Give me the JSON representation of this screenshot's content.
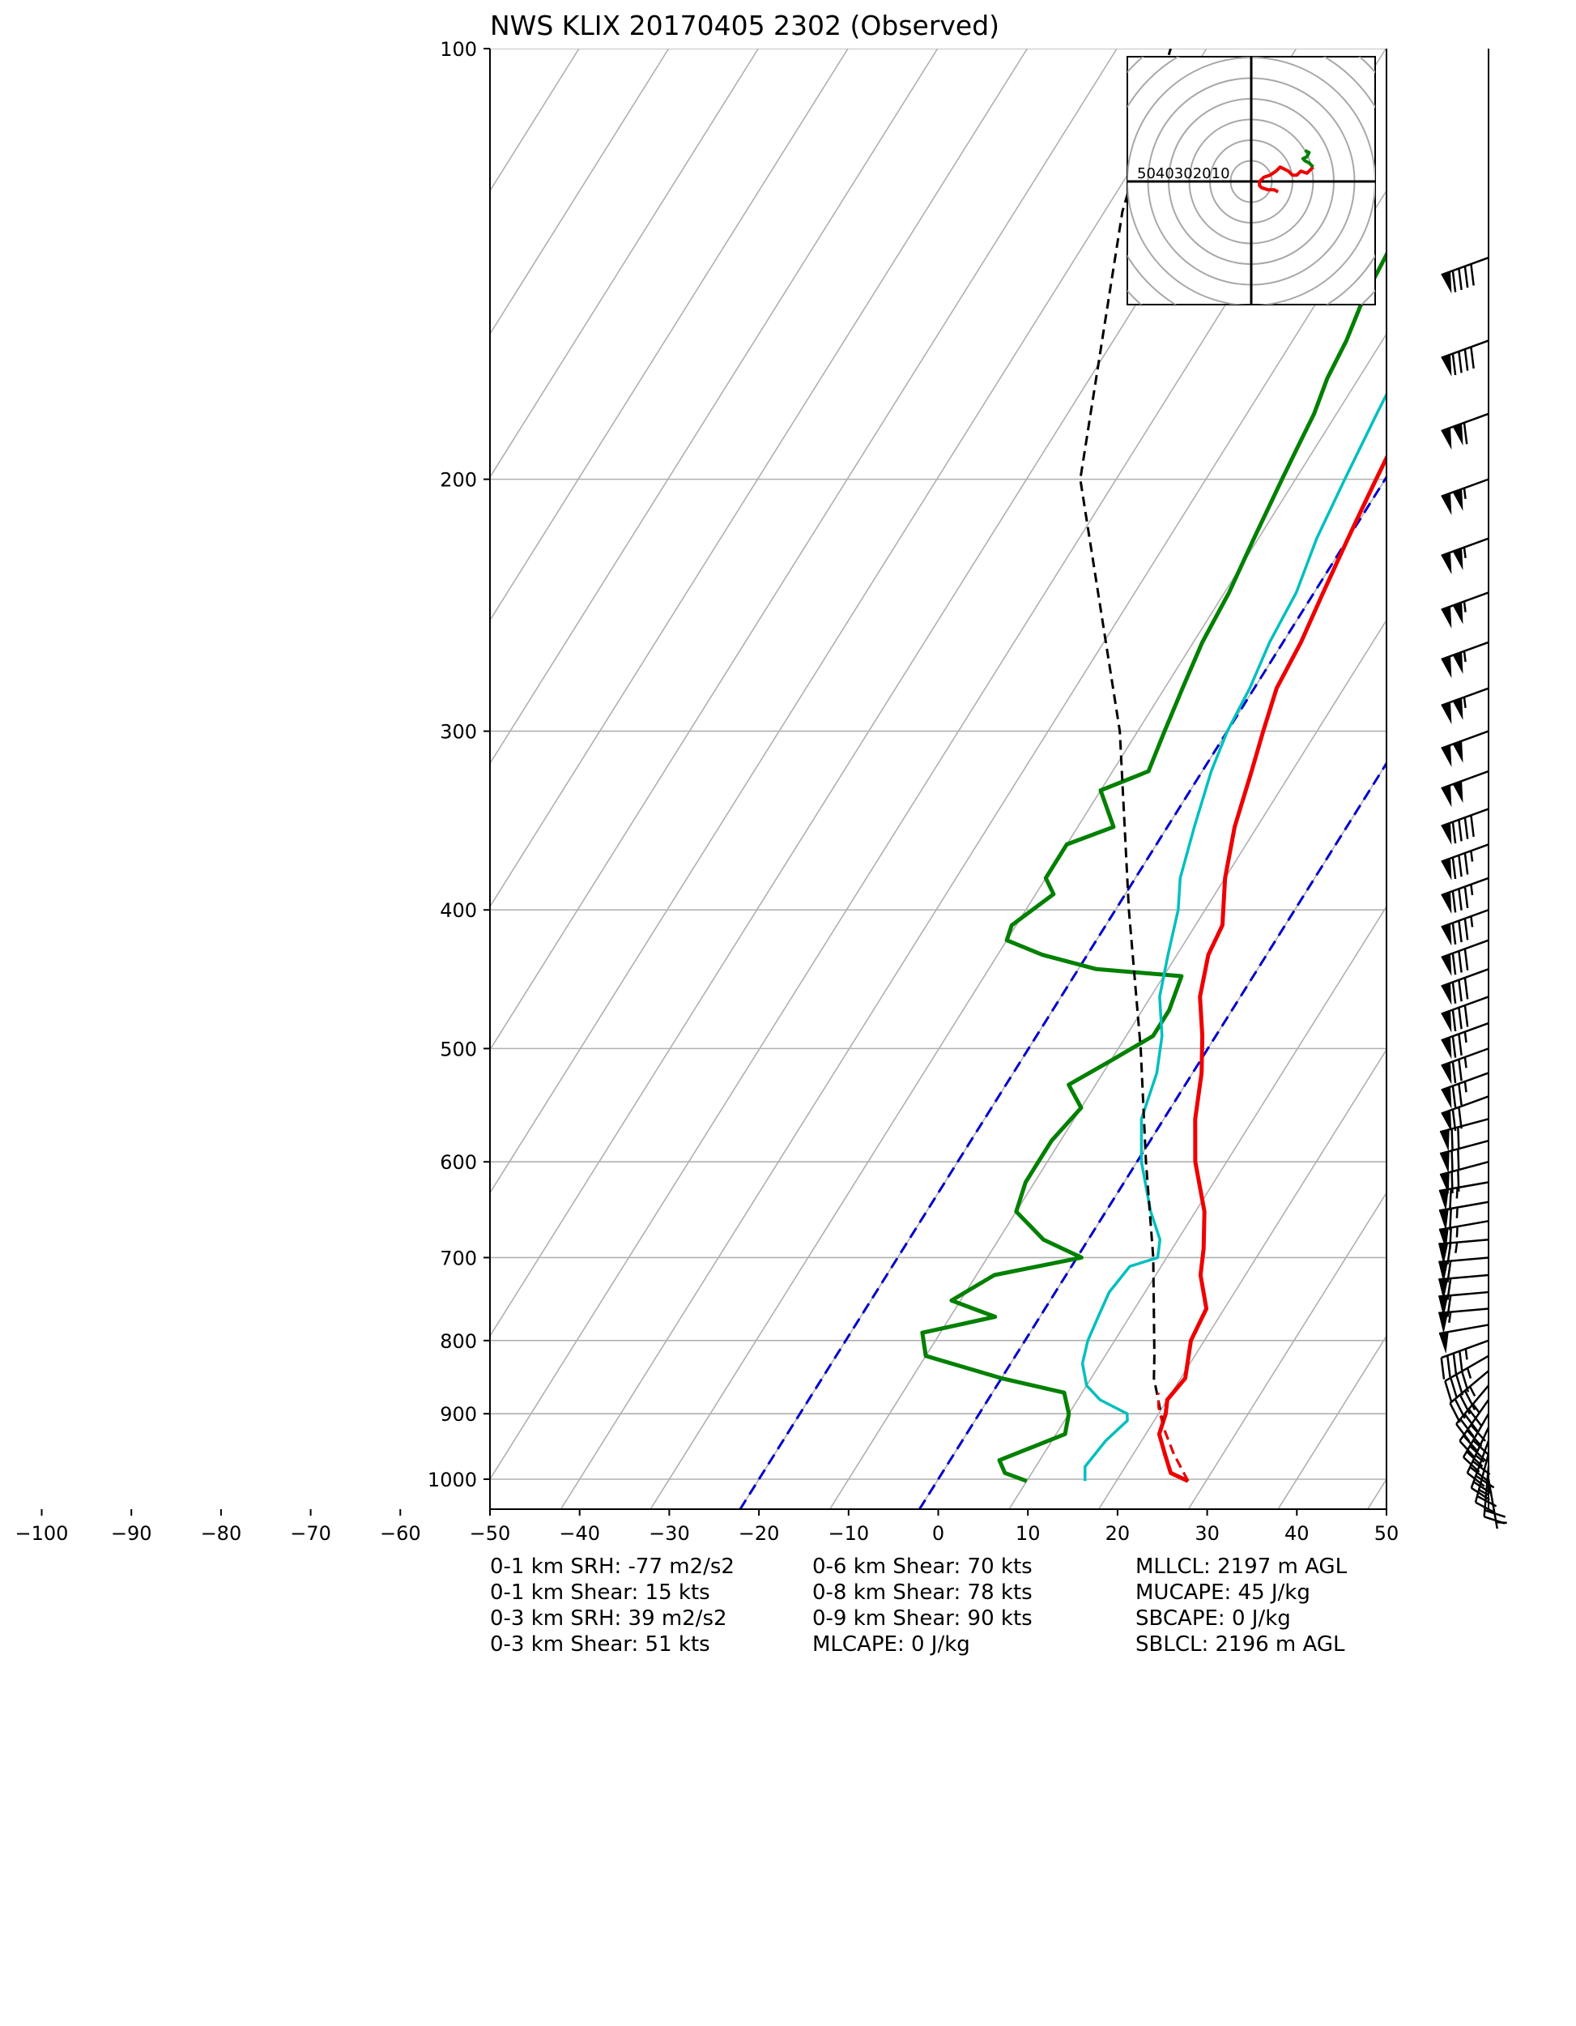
{
  "title": "NWS KLIX 20170405 2302   (Observed)",
  "chart_data": {
    "type": "skew-t",
    "title": "NWS KLIX 20170405 2302   (Observed)",
    "xlabel": "",
    "ylabel": "",
    "x_ticks": [
      -100,
      -90,
      -80,
      -70,
      -60,
      -50,
      -40,
      -30,
      -20,
      -10,
      0,
      10,
      20,
      30,
      40,
      50
    ],
    "x_ticks_labels": [
      "−100",
      "−90",
      "−80",
      "−70",
      "−60",
      "−50",
      "−40",
      "−30",
      "−20",
      "−10",
      "0",
      "10",
      "20",
      "30",
      "40",
      "50"
    ],
    "xlim": [
      -50,
      50
    ],
    "ylim": [
      1050,
      100
    ],
    "y_ticks": [
      100,
      200,
      300,
      400,
      500,
      600,
      700,
      800,
      900,
      1000
    ],
    "y_scale": "log",
    "grid": true,
    "series": [
      {
        "kind": "temperature",
        "color": "#ee0000",
        "points": [
          [
            1003,
            28
          ],
          [
            990,
            25.5
          ],
          [
            960,
            23.5
          ],
          [
            930,
            21.5
          ],
          [
            900,
            20.8
          ],
          [
            880,
            20
          ],
          [
            850,
            20.5
          ],
          [
            800,
            18.5
          ],
          [
            760,
            18
          ],
          [
            720,
            15
          ],
          [
            690,
            13.5
          ],
          [
            650,
            11
          ],
          [
            600,
            6.5
          ],
          [
            560,
            3.5
          ],
          [
            520,
            1
          ],
          [
            490,
            -1.5
          ],
          [
            460,
            -4.5
          ],
          [
            430,
            -6.5
          ],
          [
            410,
            -7
          ],
          [
            380,
            -10
          ],
          [
            350,
            -12.5
          ],
          [
            320,
            -14.5
          ],
          [
            300,
            -16
          ],
          [
            280,
            -17.5
          ],
          [
            260,
            -18
          ],
          [
            240,
            -19
          ],
          [
            220,
            -20
          ],
          [
            210,
            -20.5
          ],
          [
            200,
            -21
          ],
          [
            190,
            -21.5
          ],
          [
            180,
            -22.5
          ],
          [
            160,
            -24
          ],
          [
            140,
            -26
          ],
          [
            130,
            -27
          ],
          [
            120,
            -28
          ],
          [
            110,
            -28.5
          ],
          [
            100,
            -29
          ]
        ]
      },
      {
        "kind": "dewpoint",
        "color": "#008000",
        "points": [
          [
            1003,
            10
          ],
          [
            990,
            7
          ],
          [
            970,
            5.5
          ],
          [
            930,
            11
          ],
          [
            900,
            10
          ],
          [
            870,
            8
          ],
          [
            850,
            0
          ],
          [
            820,
            -10
          ],
          [
            790,
            -12
          ],
          [
            770,
            -5
          ],
          [
            750,
            -11
          ],
          [
            720,
            -8
          ],
          [
            700,
            0.5
          ],
          [
            680,
            -5
          ],
          [
            650,
            -10
          ],
          [
            620,
            -11
          ],
          [
            600,
            -11
          ],
          [
            580,
            -11
          ],
          [
            550,
            -10
          ],
          [
            530,
            -13
          ],
          [
            510,
            -10
          ],
          [
            490,
            -7
          ],
          [
            470,
            -7
          ],
          [
            445,
            -8
          ],
          [
            440,
            -18
          ],
          [
            430,
            -25
          ],
          [
            420,
            -30
          ],
          [
            410,
            -30.5
          ],
          [
            390,
            -28
          ],
          [
            380,
            -30
          ],
          [
            360,
            -30
          ],
          [
            350,
            -26
          ],
          [
            330,
            -30
          ],
          [
            320,
            -26
          ],
          [
            300,
            -27
          ],
          [
            280,
            -28
          ],
          [
            260,
            -29
          ],
          [
            240,
            -29.5
          ],
          [
            220,
            -30.5
          ],
          [
            200,
            -31.5
          ],
          [
            190,
            -32
          ],
          [
            180,
            -32.5
          ],
          [
            170,
            -33.5
          ],
          [
            160,
            -34
          ],
          [
            150,
            -35
          ],
          [
            140,
            -35.5
          ],
          [
            130,
            -36
          ],
          [
            120,
            -36
          ],
          [
            110,
            -36.5
          ],
          [
            100,
            -37
          ]
        ]
      },
      {
        "kind": "virtual-temperature",
        "color": "#00bfbf",
        "points": [
          [
            1003,
            16.5
          ],
          [
            980,
            15.5
          ],
          [
            940,
            16
          ],
          [
            910,
            17
          ],
          [
            900,
            16.5
          ],
          [
            880,
            12.5
          ],
          [
            860,
            10
          ],
          [
            830,
            8
          ],
          [
            800,
            7
          ],
          [
            770,
            6.5
          ],
          [
            740,
            6
          ],
          [
            710,
            6.5
          ],
          [
            700,
            9
          ],
          [
            680,
            8
          ],
          [
            650,
            5
          ],
          [
            600,
            0.5
          ],
          [
            560,
            -2.5
          ],
          [
            520,
            -4
          ],
          [
            490,
            -6
          ],
          [
            460,
            -9
          ],
          [
            430,
            -11
          ],
          [
            400,
            -13
          ],
          [
            380,
            -15
          ],
          [
            350,
            -17
          ],
          [
            320,
            -19
          ],
          [
            300,
            -20
          ],
          [
            280,
            -20.5
          ],
          [
            260,
            -21.5
          ],
          [
            240,
            -22
          ],
          [
            220,
            -23.5
          ],
          [
            200,
            -24.5
          ],
          [
            180,
            -25.5
          ],
          [
            160,
            -26.5
          ],
          [
            140,
            -28
          ],
          [
            120,
            -29.5
          ],
          [
            100,
            -31
          ]
        ]
      },
      {
        "kind": "parcel",
        "color": "#000000",
        "points": [
          [
            1003,
            28
          ],
          [
            960,
            24.5
          ],
          [
            920,
            21.5
          ],
          [
            880,
            19
          ],
          [
            850,
            17
          ],
          [
            820,
            15.5
          ],
          [
            700,
            8.5
          ],
          [
            600,
            1
          ],
          [
            500,
            -7.5
          ],
          [
            400,
            -18.5
          ],
          [
            300,
            -32
          ],
          [
            200,
            -54
          ],
          [
            130,
            -68
          ],
          [
            100,
            -74
          ]
        ]
      },
      {
        "kind": "surface-parcel-segment",
        "color": "#ee0000",
        "points": [
          [
            1003,
            28
          ],
          [
            960,
            24.5
          ],
          [
            920,
            21.5
          ],
          [
            890,
            19.5
          ],
          [
            870,
            18.5
          ]
        ]
      }
    ],
    "reference_lines": {
      "isotherm_deg_c": [
        -150,
        -140,
        -130,
        -120,
        -110,
        -100,
        -90,
        -80,
        -70,
        -60,
        -50,
        -40,
        -30,
        -20,
        -10,
        0,
        10,
        20,
        30,
        40,
        50
      ],
      "blue_dashed_at_1000hpa_deg_c": [
        -20,
        0
      ]
    },
    "hodograph": {
      "ring_labels": [
        "50",
        "40",
        "30",
        "20",
        "10"
      ],
      "rings_kts": [
        10,
        20,
        30,
        40,
        50,
        60,
        70,
        80
      ],
      "trace_red": [
        [
          13,
          -5
        ],
        [
          11,
          -4
        ],
        [
          8,
          -4
        ],
        [
          5,
          -3
        ],
        [
          4,
          -2
        ],
        [
          4,
          0
        ],
        [
          6,
          2
        ],
        [
          9,
          3
        ],
        [
          12,
          5
        ],
        [
          14,
          7
        ],
        [
          16,
          6
        ],
        [
          18,
          5
        ],
        [
          20,
          3
        ],
        [
          22,
          3
        ],
        [
          24,
          5
        ],
        [
          27,
          4
        ],
        [
          29,
          6
        ],
        [
          30,
          7
        ]
      ],
      "trace_green": [
        [
          30,
          7
        ],
        [
          28,
          9
        ],
        [
          26,
          10
        ],
        [
          25,
          11
        ],
        [
          27,
          12
        ],
        [
          28,
          14
        ],
        [
          26,
          15
        ]
      ]
    },
    "wind_barbs": [
      {
        "p": 1000,
        "dir": 170,
        "spd": 5
      },
      {
        "p": 980,
        "dir": 185,
        "spd": 20
      },
      {
        "p": 960,
        "dir": 195,
        "spd": 25
      },
      {
        "p": 940,
        "dir": 200,
        "spd": 30
      },
      {
        "p": 920,
        "dir": 205,
        "spd": 35
      },
      {
        "p": 900,
        "dir": 210,
        "spd": 40
      },
      {
        "p": 880,
        "dir": 215,
        "spd": 40
      },
      {
        "p": 860,
        "dir": 220,
        "spd": 45
      },
      {
        "p": 840,
        "dir": 230,
        "spd": 45
      },
      {
        "p": 820,
        "dir": 240,
        "spd": 45
      },
      {
        "p": 800,
        "dir": 250,
        "spd": 45
      },
      {
        "p": 780,
        "dir": 260,
        "spd": 50
      },
      {
        "p": 760,
        "dir": 265,
        "spd": 55
      },
      {
        "p": 740,
        "dir": 265,
        "spd": 60
      },
      {
        "p": 720,
        "dir": 265,
        "spd": 60
      },
      {
        "p": 700,
        "dir": 265,
        "spd": 60
      },
      {
        "p": 680,
        "dir": 265,
        "spd": 65
      },
      {
        "p": 660,
        "dir": 260,
        "spd": 65
      },
      {
        "p": 640,
        "dir": 260,
        "spd": 65
      },
      {
        "p": 620,
        "dir": 260,
        "spd": 65
      },
      {
        "p": 600,
        "dir": 255,
        "spd": 70
      },
      {
        "p": 580,
        "dir": 255,
        "spd": 70
      },
      {
        "p": 560,
        "dir": 255,
        "spd": 70
      },
      {
        "p": 540,
        "dir": 250,
        "spd": 70
      },
      {
        "p": 520,
        "dir": 250,
        "spd": 75
      },
      {
        "p": 500,
        "dir": 250,
        "spd": 75
      },
      {
        "p": 480,
        "dir": 250,
        "spd": 75
      },
      {
        "p": 460,
        "dir": 250,
        "spd": 80
      },
      {
        "p": 440,
        "dir": 250,
        "spd": 80
      },
      {
        "p": 420,
        "dir": 250,
        "spd": 80
      },
      {
        "p": 400,
        "dir": 250,
        "spd": 85
      },
      {
        "p": 380,
        "dir": 250,
        "spd": 85
      },
      {
        "p": 360,
        "dir": 250,
        "spd": 85
      },
      {
        "p": 340,
        "dir": 250,
        "spd": 90
      },
      {
        "p": 320,
        "dir": 250,
        "spd": 100
      },
      {
        "p": 300,
        "dir": 250,
        "spd": 100
      },
      {
        "p": 280,
        "dir": 250,
        "spd": 105
      },
      {
        "p": 260,
        "dir": 250,
        "spd": 105
      },
      {
        "p": 240,
        "dir": 250,
        "spd": 105
      },
      {
        "p": 220,
        "dir": 250,
        "spd": 105
      },
      {
        "p": 200,
        "dir": 250,
        "spd": 105
      },
      {
        "p": 180,
        "dir": 250,
        "spd": 110
      },
      {
        "p": 160,
        "dir": 250,
        "spd": 90
      },
      {
        "p": 140,
        "dir": 250,
        "spd": 90
      }
    ]
  },
  "indices": [
    [
      "0-1 km SRH: -77 m2/s2",
      "0-1 km Shear: 15 kts",
      "0-3 km SRH: 39 m2/s2",
      "0-3 km Shear: 51 kts"
    ],
    [
      "0-6 km Shear: 70 kts",
      "0-8 km Shear: 78 kts",
      "0-9 km Shear: 90 kts",
      "MLCAPE: 0 J/kg"
    ],
    [
      "MLLCL: 2197 m AGL",
      "MUCAPE: 45 J/kg",
      "SBCAPE: 0 J/kg",
      "SBLCL: 2196 m AGL"
    ]
  ]
}
